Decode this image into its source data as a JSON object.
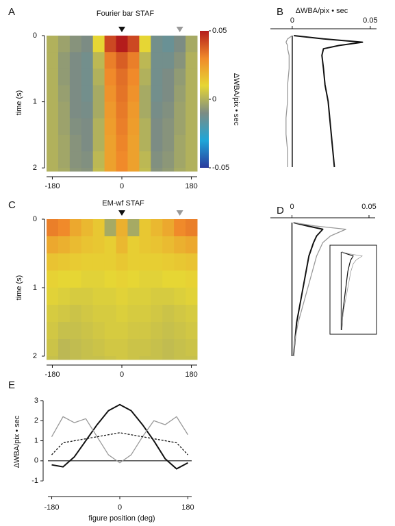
{
  "chart_data": [
    {
      "type": "heatmap",
      "panel": "A",
      "title": "Fourier bar STAF",
      "x": [
        -180,
        -150,
        -120,
        -90,
        -60,
        -30,
        0,
        30,
        60,
        90,
        120,
        150,
        180
      ],
      "y": [
        0,
        0.25,
        0.5,
        0.75,
        1,
        1.25,
        1.5,
        1.75,
        2
      ],
      "z": [
        [
          0,
          -0.004,
          -0.008,
          -0.01,
          0.01,
          0.042,
          0.05,
          0.042,
          0.01,
          -0.012,
          -0.014,
          -0.01,
          -0.002
        ],
        [
          0,
          -0.006,
          -0.01,
          -0.012,
          0.002,
          0.032,
          0.038,
          0.032,
          0.002,
          -0.012,
          -0.012,
          -0.008,
          0
        ],
        [
          0,
          -0.006,
          -0.01,
          -0.012,
          0,
          0.03,
          0.035,
          0.03,
          0,
          -0.012,
          -0.01,
          -0.006,
          0
        ],
        [
          0,
          -0.005,
          -0.01,
          -0.012,
          -0.002,
          0.028,
          0.034,
          0.028,
          -0.002,
          -0.012,
          -0.01,
          -0.005,
          0
        ],
        [
          0,
          -0.004,
          -0.01,
          -0.011,
          -0.002,
          0.026,
          0.033,
          0.026,
          -0.002,
          -0.011,
          -0.009,
          -0.004,
          0
        ],
        [
          0,
          -0.004,
          -0.009,
          -0.01,
          0,
          0.025,
          0.032,
          0.025,
          0,
          -0.01,
          -0.008,
          -0.004,
          0
        ],
        [
          0,
          -0.003,
          -0.008,
          -0.01,
          0,
          0.024,
          0.031,
          0.024,
          0,
          -0.01,
          -0.008,
          -0.003,
          0
        ],
        [
          0,
          -0.003,
          -0.008,
          -0.009,
          0.002,
          0.024,
          0.03,
          0.024,
          0.002,
          -0.009,
          -0.007,
          -0.003,
          0
        ],
        [
          0,
          -0.002,
          -0.007,
          -0.008,
          0.003,
          0.024,
          0.03,
          0.024,
          0.003,
          -0.008,
          -0.006,
          -0.002,
          0
        ]
      ],
      "xlim": [
        -195,
        195
      ],
      "ylim": [
        0,
        2.05
      ],
      "y_inverted": true,
      "xticks": [
        -180,
        0,
        180
      ],
      "yticks": [
        0,
        1,
        2
      ],
      "ylabel": "time (s)",
      "zlim": [
        -0.05,
        0.05
      ],
      "colorscale": [
        "#2a3a9c",
        "#1fa6d8",
        "#7c8c84",
        "#e6d634",
        "#f08a2a",
        "#b41c1c"
      ],
      "colorbar_ticks": [
        0.05,
        0,
        -0.05
      ],
      "colorbar_label": "ΔWBA/pix • sec",
      "markers": [
        {
          "x": 0,
          "color": "#111111"
        },
        {
          "x": 150,
          "color": "#999999"
        }
      ]
    },
    {
      "type": "line",
      "panel": "B",
      "orientation": "vertical",
      "xlabel": "ΔWBA/pix • sec",
      "y": [
        0,
        0.05,
        0.1,
        0.15,
        0.2,
        0.3,
        0.5,
        0.75,
        1,
        1.25,
        1.5,
        1.75,
        2
      ],
      "series": [
        {
          "color": "#111111",
          "values": [
            0.001,
            0.02,
            0.045,
            0.03,
            0.02,
            0.019,
            0.02,
            0.021,
            0.023,
            0.024,
            0.025,
            0.026,
            0.027
          ]
        },
        {
          "color": "#999999",
          "values": [
            0,
            -0.003,
            -0.004,
            -0.003,
            -0.003,
            -0.002,
            -0.002,
            -0.003,
            -0.003,
            -0.004,
            -0.004,
            -0.003,
            -0.003
          ]
        }
      ],
      "xlim": [
        -0.014,
        0.054
      ],
      "ylim": [
        0,
        2
      ],
      "y_inverted": true,
      "xticks": [
        0,
        0.05
      ]
    },
    {
      "type": "heatmap",
      "panel": "C",
      "title": "EM-wf STAF",
      "x": [
        -180,
        -150,
        -120,
        -90,
        -60,
        -30,
        0,
        30,
        60,
        90,
        120,
        150,
        180
      ],
      "y": [
        0,
        0.25,
        0.5,
        0.75,
        1,
        1.25,
        1.5,
        1.75,
        2
      ],
      "z": [
        [
          0.032,
          0.03,
          0.022,
          0.018,
          0.014,
          -0.002,
          0.02,
          -0.002,
          0.014,
          0.018,
          0.022,
          0.03,
          0.032
        ],
        [
          0.022,
          0.02,
          0.017,
          0.015,
          0.014,
          0.012,
          0.018,
          0.012,
          0.014,
          0.015,
          0.017,
          0.02,
          0.022
        ],
        [
          0.015,
          0.014,
          0.013,
          0.012,
          0.012,
          0.012,
          0.014,
          0.012,
          0.012,
          0.012,
          0.013,
          0.014,
          0.015
        ],
        [
          0.011,
          0.01,
          0.01,
          0.009,
          0.009,
          0.01,
          0.011,
          0.01,
          0.009,
          0.009,
          0.01,
          0.01,
          0.011
        ],
        [
          0.009,
          0.008,
          0.007,
          0.007,
          0.008,
          0.008,
          0.009,
          0.008,
          0.008,
          0.007,
          0.007,
          0.008,
          0.009
        ],
        [
          0.007,
          0.006,
          0.005,
          0.006,
          0.007,
          0.007,
          0.008,
          0.007,
          0.007,
          0.006,
          0.005,
          0.006,
          0.007
        ],
        [
          0.006,
          0.004,
          0.004,
          0.005,
          0.006,
          0.007,
          0.007,
          0.006,
          0.006,
          0.005,
          0.004,
          0.005,
          0.006
        ],
        [
          0.005,
          0.002,
          0.003,
          0.004,
          0.005,
          0.006,
          0.006,
          0.005,
          0.005,
          0.004,
          0.003,
          0.004,
          0.005
        ],
        [
          0.004,
          0.002,
          0.003,
          0.004,
          0.004,
          0.005,
          0.006,
          0.005,
          0.004,
          0.004,
          0.003,
          0.004,
          0.004
        ]
      ],
      "xlim": [
        -195,
        195
      ],
      "ylim": [
        0,
        2.05
      ],
      "y_inverted": true,
      "xticks": [
        -180,
        0,
        180
      ],
      "yticks": [
        0,
        1,
        2
      ],
      "ylabel": "time (s)",
      "zlim": [
        -0.05,
        0.05
      ],
      "colorscale": [
        "#2a3a9c",
        "#1fa6d8",
        "#7c8c84",
        "#e6d634",
        "#f08a2a",
        "#b41c1c"
      ],
      "markers": [
        {
          "x": 0,
          "color": "#111111"
        },
        {
          "x": 150,
          "color": "#999999"
        }
      ]
    },
    {
      "type": "line",
      "panel": "D",
      "orientation": "vertical",
      "inset": true,
      "y": [
        0,
        0.05,
        0.1,
        0.15,
        0.2,
        0.3,
        0.5,
        0.75,
        1,
        1.25,
        1.5,
        1.75,
        2
      ],
      "series": [
        {
          "color": "#111111",
          "values": [
            0.001,
            0.01,
            0.02,
            0.018,
            0.016,
            0.014,
            0.011,
            0.009,
            0.007,
            0.005,
            0.003,
            0.002,
            0.001
          ]
        },
        {
          "color": "#999999",
          "values": [
            0.001,
            0.015,
            0.035,
            0.03,
            0.025,
            0.02,
            0.016,
            0.013,
            0.01,
            0.007,
            0.004,
            0.002,
            0.001
          ]
        }
      ],
      "xlim": [
        -0.014,
        0.054
      ],
      "ylim": [
        0,
        2
      ],
      "y_inverted": true,
      "xticks": [
        0,
        0.05
      ]
    },
    {
      "type": "line",
      "panel": "E",
      "orientation": "horizontal",
      "ylabel": "ΔWBA/pix • sec",
      "xlabel": "figure position (deg)",
      "x": [
        -180,
        -150,
        -120,
        -90,
        -60,
        -30,
        0,
        30,
        60,
        90,
        120,
        150,
        180
      ],
      "series": [
        {
          "color": "#111111",
          "style": "solid",
          "values": [
            -0.2,
            -0.3,
            0.2,
            1.0,
            1.8,
            2.5,
            2.8,
            2.5,
            1.8,
            1.0,
            0.1,
            -0.4,
            -0.1
          ]
        },
        {
          "color": "#999999",
          "style": "solid",
          "values": [
            1.2,
            2.2,
            1.9,
            2.1,
            1.2,
            0.3,
            -0.1,
            0.3,
            1.2,
            2.0,
            1.8,
            2.2,
            1.3
          ]
        },
        {
          "color": "#111111",
          "style": "dotted",
          "values": [
            0.3,
            0.9,
            1.0,
            1.1,
            1.2,
            1.3,
            1.4,
            1.3,
            1.2,
            1.1,
            1.0,
            0.9,
            0.3
          ]
        }
      ],
      "xlim": [
        -190,
        190
      ],
      "ylim": [
        -1.2,
        3.1
      ],
      "xticks": [
        -180,
        0,
        180
      ],
      "yticks": [
        -1,
        0,
        1,
        2,
        3
      ]
    }
  ]
}
